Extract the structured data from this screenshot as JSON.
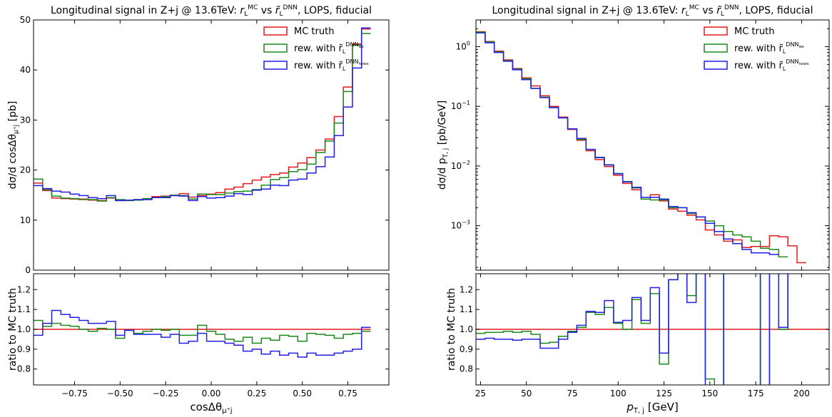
{
  "chart_data": [
    {
      "type": "line",
      "panel": "upper-left",
      "title": "Longitudinal signal in Z+j @ 13.6TeV: r_L^MC vs r̃_L^DNN, LOPS, fiducial",
      "title_parts": {
        "prefix": "Longitudinal signal in Z+j @ 13.6TeV: ",
        "r1": "r",
        "r1_sub": "L",
        "r1_sup": "MC",
        "vs": " vs ",
        "r2": "r̃",
        "r2_sub": "L",
        "r2_sup": "DNN",
        "suffix": ", LOPS, fiducial"
      },
      "ylabel": "dσ/d cosΔθ_μ⁺j [pb]",
      "ylabel_parts": {
        "main": "dσ/d cosΔθ",
        "sub": "μ⁺j",
        "unit": " [pb]"
      },
      "xlim": [
        -0.975,
        0.975
      ],
      "ylim": [
        0,
        50
      ],
      "yticks": [
        0,
        10,
        20,
        30,
        40,
        50
      ],
      "ytick_labels": [
        "0",
        "10",
        "20",
        "30",
        "40",
        "50"
      ],
      "legend_placement": "top-right",
      "legend": [
        {
          "label": "MC truth",
          "color": "#e41a1c"
        },
        {
          "label": "rew. with r̃_L^DNN_ws",
          "main": "rew. with r̃",
          "sub": "L",
          "sup": "DNN",
          "supsub": "ws",
          "color": "#1a8a1a"
        },
        {
          "label": "rew. with r̃_L^DNN_nows",
          "main": "rew. with r̃",
          "sub": "L",
          "sup": "DNN",
          "supsub": "nows",
          "color": "#1f1fe6"
        }
      ],
      "bins_x": [
        -0.975,
        -0.925,
        -0.875,
        -0.825,
        -0.775,
        -0.725,
        -0.675,
        -0.625,
        -0.575,
        -0.525,
        -0.475,
        -0.425,
        -0.375,
        -0.325,
        -0.275,
        -0.225,
        -0.175,
        -0.125,
        -0.075,
        -0.025,
        0.025,
        0.075,
        0.125,
        0.175,
        0.225,
        0.275,
        0.325,
        0.375,
        0.425,
        0.475,
        0.525,
        0.575,
        0.625,
        0.675,
        0.725,
        0.775,
        0.825,
        0.875,
        0.925,
        0.975
      ],
      "series": [
        {
          "name": "MC truth",
          "color": "#e41a1c",
          "values": [
            17.4,
            15.9,
            14.4,
            14.3,
            14.2,
            14.2,
            14.0,
            13.9,
            14.4,
            13.9,
            14.0,
            14.1,
            14.3,
            14.7,
            14.8,
            14.9,
            15.3,
            14.6,
            14.9,
            15.2,
            15.5,
            16.2,
            16.6,
            17.3,
            18.0,
            18.6,
            19.1,
            19.4,
            20.6,
            21.4,
            22.5,
            24.0,
            26.2,
            30.7,
            36.6,
            45.2,
            48.2
          ]
        },
        {
          "name": "rew. with r̃_L^DNN_ws",
          "color": "#1a8a1a",
          "values": [
            18.2,
            16.1,
            14.8,
            14.4,
            14.3,
            14.1,
            14.1,
            13.8,
            14.5,
            14.1,
            13.9,
            14.0,
            14.3,
            14.5,
            14.7,
            15.0,
            14.9,
            14.2,
            15.2,
            15.1,
            15.1,
            15.4,
            15.7,
            15.8,
            16.1,
            17.0,
            18.1,
            18.5,
            19.7,
            20.1,
            21.2,
            23.5,
            25.8,
            29.4,
            35.7,
            45.0,
            47.3
          ]
        },
        {
          "name": "rew. with r̃_L^DNN_nows",
          "color": "#1f1fe6",
          "values": [
            16.9,
            16.3,
            15.8,
            15.6,
            15.2,
            14.9,
            14.5,
            14.3,
            14.9,
            13.9,
            14.0,
            14.1,
            14.1,
            14.5,
            14.5,
            14.9,
            14.8,
            13.9,
            14.7,
            14.4,
            14.5,
            14.8,
            15.3,
            15.1,
            16.0,
            16.2,
            17.0,
            16.9,
            18.0,
            18.2,
            19.4,
            20.7,
            22.6,
            26.9,
            32.6,
            40.4,
            48.4
          ]
        }
      ]
    },
    {
      "type": "line",
      "panel": "lower-left",
      "xlabel": "cosΔθ_μ⁺j",
      "xlabel_parts": {
        "main": "cosΔθ",
        "sub": "μ⁺j"
      },
      "ylabel": "ratio to MC truth",
      "xlim": [
        -0.975,
        0.975
      ],
      "ylim": [
        0.72,
        1.28
      ],
      "xticks": [
        -0.75,
        -0.5,
        -0.25,
        0.0,
        0.25,
        0.5,
        0.75
      ],
      "xtick_labels": [
        "−0.75",
        "−0.50",
        "−0.25",
        "0.00",
        "0.25",
        "0.50",
        "0.75"
      ],
      "yticks": [
        0.8,
        0.9,
        1.0,
        1.1,
        1.2
      ],
      "ytick_labels": [
        "0.8",
        "0.9",
        "1.0",
        "1.1",
        "1.2"
      ],
      "reference_line": 1.0,
      "bins_x": [
        -0.975,
        -0.925,
        -0.875,
        -0.825,
        -0.775,
        -0.725,
        -0.675,
        -0.625,
        -0.575,
        -0.525,
        -0.475,
        -0.425,
        -0.375,
        -0.325,
        -0.275,
        -0.225,
        -0.175,
        -0.125,
        -0.075,
        -0.025,
        0.025,
        0.075,
        0.125,
        0.175,
        0.225,
        0.275,
        0.325,
        0.375,
        0.425,
        0.475,
        0.525,
        0.575,
        0.625,
        0.675,
        0.725,
        0.775,
        0.825,
        0.875,
        0.925,
        0.975
      ],
      "series": [
        {
          "name": "MC truth",
          "color": "#e41a1c",
          "values": [
            1.0,
            1.0,
            1.0,
            1.0,
            1.0,
            1.0,
            1.0,
            1.0,
            1.0,
            1.0,
            1.0,
            1.0,
            1.0,
            1.0,
            1.0,
            1.0,
            1.0,
            1.0,
            1.0,
            1.0,
            1.0,
            1.0,
            1.0,
            1.0,
            1.0,
            1.0,
            1.0,
            1.0,
            1.0,
            1.0,
            1.0,
            1.0,
            1.0,
            1.0,
            1.0,
            1.0,
            1.0
          ]
        },
        {
          "name": "rew. with r̃_L^DNN_ws",
          "color": "#1a8a1a",
          "values": [
            1.045,
            1.015,
            1.03,
            1.02,
            1.015,
            1.0,
            0.99,
            1.005,
            1.0,
            0.955,
            0.995,
            0.98,
            0.99,
            1.0,
            0.995,
            1.0,
            0.97,
            0.97,
            1.02,
            0.99,
            0.975,
            0.95,
            0.94,
            0.96,
            0.93,
            0.955,
            0.945,
            0.97,
            0.965,
            0.94,
            0.98,
            0.975,
            0.97,
            0.955,
            0.975,
            0.98,
            0.99
          ]
        },
        {
          "name": "rew. with r̃_L^DNN_nows",
          "color": "#1f1fe6",
          "values": [
            0.97,
            1.03,
            1.095,
            1.075,
            1.06,
            1.045,
            1.03,
            1.03,
            1.04,
            0.97,
            0.995,
            0.975,
            0.975,
            0.975,
            0.96,
            0.975,
            0.93,
            0.94,
            0.98,
            0.94,
            0.94,
            0.93,
            0.92,
            0.89,
            0.9,
            0.875,
            0.89,
            0.87,
            0.88,
            0.86,
            0.88,
            0.87,
            0.87,
            0.88,
            0.89,
            0.9,
            1.01
          ]
        }
      ]
    },
    {
      "type": "line",
      "panel": "upper-right",
      "title": "Longitudinal signal in Z+j @ 13.6TeV: r_L^MC vs r̃_L^DNN, LOPS, fiducial",
      "ylabel": "dσ/d p_T,j [pb/GeV]",
      "ylabel_parts": {
        "main": "dσ/d p",
        "sub": "T, j",
        "unit": "  [pb/GeV]"
      },
      "yscale": "log",
      "xlim": [
        22.5,
        215
      ],
      "ylim": [
        0.00018,
        2.8
      ],
      "yticks": [
        0.001,
        0.01,
        0.1,
        1
      ],
      "ytick_labels": [
        {
          "base": "10",
          "exp": "−3"
        },
        {
          "base": "10",
          "exp": "−2"
        },
        {
          "base": "10",
          "exp": "−1"
        },
        {
          "base": "10",
          "exp": "0"
        }
      ],
      "legend_placement": "top-right",
      "bins_x": [
        22.5,
        27.5,
        32.5,
        37.5,
        42.5,
        47.5,
        52.5,
        57.5,
        62.5,
        67.5,
        72.5,
        77.5,
        82.5,
        87.5,
        92.5,
        97.5,
        102.5,
        107.5,
        112.5,
        117.5,
        122.5,
        127.5,
        132.5,
        137.5,
        142.5,
        147.5,
        152.5,
        157.5,
        162.5,
        167.5,
        172.5,
        177.5,
        182.5,
        187.5,
        192.5,
        197.5,
        202.5,
        207.5,
        215
      ],
      "series": [
        {
          "name": "MC truth",
          "color": "#e41a1c",
          "values": [
            1.78,
            1.22,
            0.84,
            0.6,
            0.43,
            0.3,
            0.22,
            0.15,
            0.1,
            0.066,
            0.041,
            0.027,
            0.018,
            0.0128,
            0.0098,
            0.007,
            0.0051,
            0.004,
            0.0028,
            0.0033,
            0.0026,
            0.0019,
            0.00175,
            0.0015,
            0.00125,
            0.00085,
            0.0007,
            0.00055,
            0.00058,
            0.00043,
            0.00045,
            0.00045,
            0.00068,
            0.00065,
            0.00046,
            0.00024
          ]
        },
        {
          "name": "rew. with r̃_L^DNN_ws",
          "color": "#1a8a1a",
          "values": [
            1.75,
            1.2,
            0.82,
            0.58,
            0.42,
            0.29,
            0.2,
            0.142,
            0.096,
            0.064,
            0.042,
            0.028,
            0.019,
            0.0138,
            0.0105,
            0.0075,
            0.0055,
            0.0043,
            0.0028,
            0.0027,
            0.0027,
            0.002,
            0.002,
            0.0016,
            0.0014,
            0.0012,
            0.001,
            0.0008,
            0.0007,
            0.00065,
            0.00055,
            0.00042,
            0.0004,
            0.0003
          ]
        },
        {
          "name": "rew. with r̃_L^DNN_nows",
          "color": "#1f1fe6",
          "values": [
            1.7,
            1.16,
            0.8,
            0.57,
            0.41,
            0.28,
            0.2,
            0.14,
            0.095,
            0.064,
            0.042,
            0.029,
            0.019,
            0.014,
            0.0104,
            0.0074,
            0.0054,
            0.0044,
            0.003,
            0.003,
            0.0028,
            0.0021,
            0.002,
            0.00165,
            0.0014,
            0.0011,
            0.0008,
            0.0006,
            0.0005,
            0.0004,
            0.00035,
            0.00035,
            0.00033
          ]
        }
      ]
    },
    {
      "type": "line",
      "panel": "lower-right",
      "xlabel": "p_T,j [GeV]",
      "xlabel_parts": {
        "main": "p",
        "sub": "T, j",
        "unit": " [GeV]"
      },
      "ylabel": "ratio to MC truth",
      "xlim": [
        22.5,
        215
      ],
      "ylim": [
        0.72,
        1.28
      ],
      "xticks": [
        25,
        50,
        75,
        100,
        125,
        150,
        175,
        200
      ],
      "xtick_labels": [
        "25",
        "50",
        "75",
        "100",
        "125",
        "150",
        "175",
        "200"
      ],
      "yticks": [
        0.8,
        0.9,
        1.0,
        1.1,
        1.2
      ],
      "ytick_labels": [
        "0.8",
        "0.9",
        "1.0",
        "1.1",
        "1.2"
      ],
      "reference_line": 1.0,
      "bins_x": [
        22.5,
        27.5,
        32.5,
        37.5,
        42.5,
        47.5,
        52.5,
        57.5,
        62.5,
        67.5,
        72.5,
        77.5,
        82.5,
        87.5,
        92.5,
        97.5,
        102.5,
        107.5,
        112.5,
        117.5,
        122.5,
        127.5,
        132.5,
        137.5,
        142.5,
        147.5,
        152.5,
        157.5,
        162.5,
        167.5,
        172.5,
        177.5,
        182.5,
        187.5,
        192.5,
        197.5,
        202.5,
        207.5,
        215
      ],
      "series": [
        {
          "name": "MC truth",
          "color": "#e41a1c",
          "values": [
            1.0,
            1.0,
            1.0,
            1.0,
            1.0,
            1.0,
            1.0,
            1.0,
            1.0,
            1.0,
            1.0,
            1.0,
            1.0,
            1.0,
            1.0,
            1.0,
            1.0,
            1.0,
            1.0,
            1.0,
            1.0,
            1.0,
            1.0,
            1.0,
            1.0,
            1.0,
            1.0,
            1.0,
            1.0,
            1.0,
            1.0,
            1.0,
            1.0,
            1.0,
            1.0,
            1.0,
            1.0,
            1.0
          ]
        },
        {
          "name": "rew. with r̃_L^DNN_ws",
          "color": "#1a8a1a",
          "values": [
            0.98,
            0.985,
            0.985,
            0.99,
            0.985,
            0.99,
            0.975,
            0.93,
            0.935,
            0.965,
            0.99,
            1.01,
            1.085,
            1.075,
            1.11,
            1.03,
            1.0,
            1.15,
            1.03,
            1.18,
            0.825,
            1.25,
            1.3,
            1.17,
            1.3,
            0.75,
            0.7,
            1.3,
            1.3,
            1.3,
            1.3,
            0.7,
            1.3,
            1.0,
            1.3
          ]
        },
        {
          "name": "rew. with r̃_L^DNN_nows",
          "color": "#1f1fe6",
          "values": [
            0.95,
            0.955,
            0.95,
            0.95,
            0.945,
            0.95,
            0.95,
            0.905,
            0.905,
            0.95,
            0.985,
            1.02,
            1.09,
            1.085,
            1.145,
            1.035,
            1.045,
            1.16,
            1.045,
            1.21,
            0.88,
            1.25,
            1.3,
            1.135,
            1.3,
            0.7,
            0.7,
            1.3,
            1.3,
            1.3,
            1.3,
            0.7,
            1.3,
            1.01,
            1.3
          ]
        }
      ]
    }
  ]
}
